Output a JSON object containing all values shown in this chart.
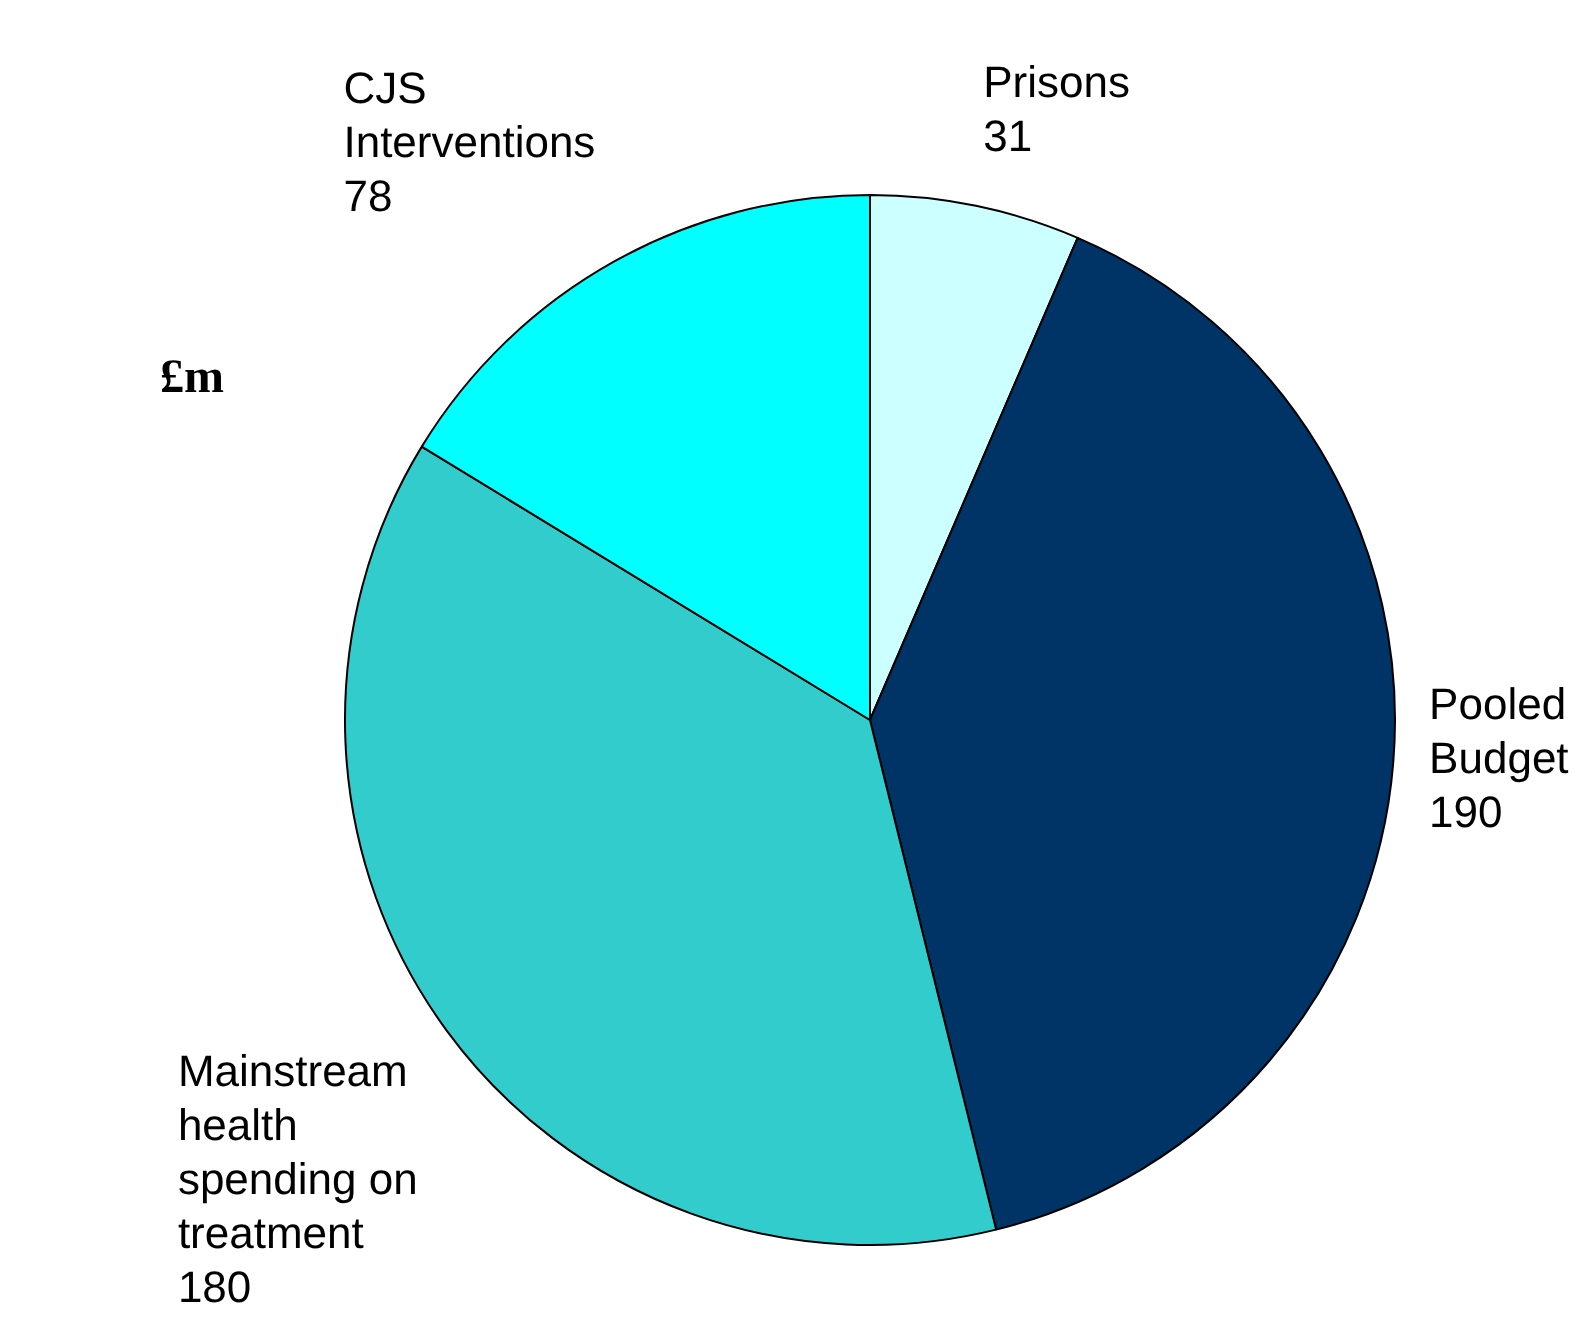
{
  "chart_data": {
    "type": "pie",
    "categories": [
      "Prisons",
      "Pooled Budget",
      "Mainstream health spending on treatment",
      "CJS Interventions"
    ],
    "values": [
      31,
      190,
      180,
      78
    ],
    "colors": [
      "#ccffff",
      "#003366",
      "#33cccc",
      "#00ffff"
    ],
    "data_labels": true,
    "legend": false,
    "annotations": [
      "£m"
    ]
  }
}
